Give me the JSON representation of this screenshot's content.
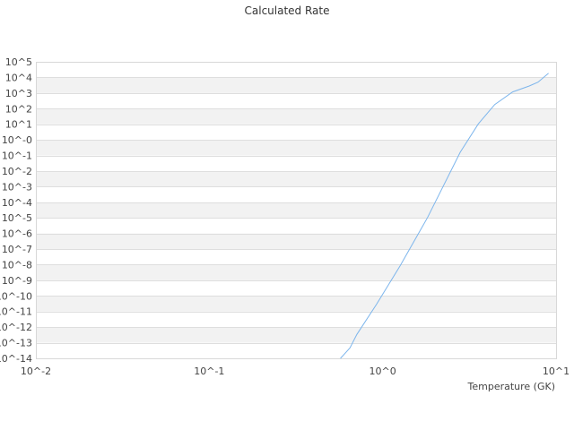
{
  "chart_data": {
    "type": "line",
    "title": "Calculated Rate",
    "xlabel": "Temperature (GK)",
    "ylabel": "",
    "x_scale": "log",
    "y_scale": "log",
    "xlim": [
      0.01,
      10
    ],
    "ylim": [
      1e-14,
      100000.0
    ],
    "x_ticks": [
      "10^-2",
      "10^-1",
      "10^0",
      "10^1"
    ],
    "y_ticks": [
      "10^5",
      "10^4",
      "10^3",
      "10^2",
      "10^1",
      "10^-0",
      "10^-1",
      "10^-2",
      "10^-3",
      "10^-4",
      "10^-5",
      "10^-6",
      "10^-7",
      "10^-8",
      "10^-9",
      "10^-10",
      "10^-11",
      "10^-12",
      "10^-13",
      "10^-14"
    ],
    "grid": true,
    "legend": "none",
    "series": [
      {
        "color": "#7cb5ec",
        "x": [
          0.571,
          0.648,
          0.71,
          0.92,
          1.26,
          1.81,
          2.04,
          2.8,
          3.56,
          4.43,
          5.62,
          7.0,
          7.87,
          9.05
        ],
        "y": [
          1e-14,
          4.7e-14,
          3.4e-13,
          2.8e-11,
          8.5e-09,
          1e-05,
          0.00014,
          0.16,
          10.5,
          182,
          1175,
          2820,
          5000,
          18600
        ]
      }
    ]
  }
}
